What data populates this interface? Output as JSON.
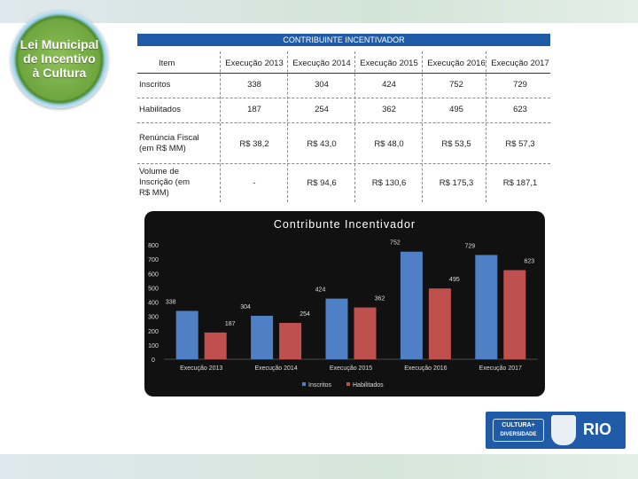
{
  "logo": {
    "lines": [
      "Lei Municipal",
      "de Incentivo",
      "à Cultura"
    ]
  },
  "table": {
    "title": "CONTRIBUINTE INCENTIVADOR",
    "headers": [
      "Item",
      "Execução 2013",
      "Execução 2014",
      "Execução 2015",
      "Execução 2016",
      "Execução 2017"
    ],
    "rows": [
      {
        "label": "Inscritos",
        "values": [
          "338",
          "304",
          "424",
          "752",
          "729"
        ]
      },
      {
        "label": "Habilitados",
        "values": [
          "187",
          "254",
          "362",
          "495",
          "623"
        ]
      },
      {
        "label": "Renúncia Fiscal (em R$ MM)",
        "values": [
          "R$ 38,2",
          "R$ 43,0",
          "R$ 48,0",
          "R$ 53,5",
          "R$ 57,3"
        ]
      },
      {
        "label": "Volume de Inscrição (em R$ MM)",
        "values": [
          "-",
          "R$ 94,6",
          "R$ 130,6",
          "R$ 175,3",
          "R$ 187,1"
        ]
      }
    ]
  },
  "chart_data": {
    "type": "bar",
    "title": "Contribunte Incentivador",
    "categories": [
      "Execução 2013",
      "Execução 2014",
      "Execução 2015",
      "Execução 2016",
      "Execução 2017"
    ],
    "series": [
      {
        "name": "Inscritos",
        "values": [
          338,
          304,
          424,
          752,
          729
        ],
        "color": "#4f7fc4"
      },
      {
        "name": "Habilitados",
        "values": [
          187,
          254,
          362,
          495,
          623
        ],
        "color": "#c0504d"
      }
    ],
    "ylim": [
      0,
      800
    ],
    "yticks": [
      0,
      100,
      200,
      300,
      400,
      500,
      600,
      700,
      800
    ],
    "grid": false,
    "legend": "bottom"
  },
  "brand": {
    "cultura_line1": "CULTURA+",
    "cultura_line2": "DIVERSIDADE",
    "city": "RIO"
  }
}
